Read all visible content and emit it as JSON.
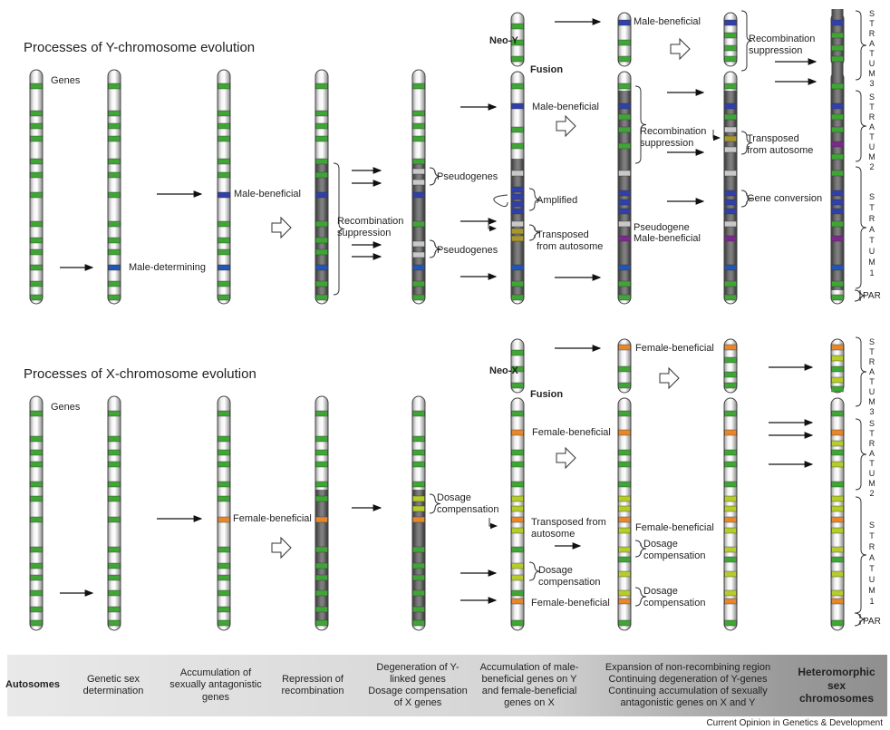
{
  "titles": {
    "y_title": "Processes of Y-chromosome evolution",
    "x_title": "Processes of X-chromosome evolution"
  },
  "labels": {
    "genes": "Genes",
    "male_determining": "Male-determining",
    "male_beneficial": "Male-beneficial",
    "recombination_suppression": "Recombination\nsuppression",
    "pseudogenes": "Pseudogenes",
    "amplified": "Amplified",
    "transposed_from_autosome": "Transposed\nfrom autosome",
    "neo_y": "Neo-Y",
    "neo_x": "Neo-X",
    "fusion": "Fusion",
    "pseudogene": "Pseudogene",
    "gene_conversion": "Gene conversion",
    "female_beneficial": "Female-beneficial",
    "dosage_compensation": "Dosage\ncompensation",
    "transposed_from_autosome_x": "Transposed from\nautosome",
    "par": "PAR",
    "stratum_letters": "STRATUM",
    "stratum_1": "1",
    "stratum_2": "2",
    "stratum_3": "3"
  },
  "stages": [
    {
      "label": "Autosomes",
      "bold": true
    },
    {
      "label": "Genetic sex\ndetermination",
      "bold": false
    },
    {
      "label": "Accumulation of\nsexually antagonistic\ngenes",
      "bold": false
    },
    {
      "label": "Repression of\nrecombination",
      "bold": false
    },
    {
      "label": "Degeneration of Y-\nlinked genes\nDosage compensation\nof X genes",
      "bold": false
    },
    {
      "label": "Accumulation of male-\nbeneficial genes on Y\nand female-beneficial\ngenes on X",
      "bold": false
    },
    {
      "label": "Expansion of non-recombining region\nContinuing degeneration of Y-genes\nContinuing accumulation of sexually\nantagonistic genes on X and Y",
      "bold": false
    },
    {
      "label": "Heteromorphic\nsex\nchromosomes",
      "bold": true
    }
  ],
  "credit": "Current Opinion in Genetics & Development",
  "colors": {
    "gene_green": "#3fa535",
    "male_blue": "#3040a8",
    "male_determining_blue": "#2255b5",
    "female_orange": "#e8872a",
    "dosage_yellow": "#b5cc2a",
    "pseudogene_gray": "#c9c9c9",
    "transposed_olive": "#a8962e",
    "male_purple": "#7a2a8a",
    "degenerate_dark": "#6a6a6a"
  }
}
